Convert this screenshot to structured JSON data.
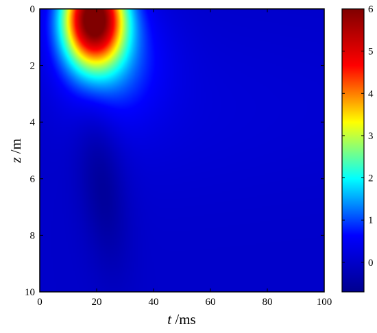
{
  "chart_data": {
    "type": "heatmap",
    "xlabel": {
      "var": "t",
      "unit": " /ms"
    },
    "ylabel": {
      "var": "z",
      "unit": " /m"
    },
    "xlim": [
      0,
      100
    ],
    "ylim": [
      0,
      10
    ],
    "y_axis_inverted": true,
    "x_ticks": [
      "0",
      "20",
      "40",
      "60",
      "80",
      "100"
    ],
    "y_ticks": [
      "0",
      "2",
      "4",
      "6",
      "8",
      "10"
    ],
    "colorbar": {
      "range": [
        -0.7,
        6
      ],
      "ticks": [
        "0",
        "1",
        "2",
        "3",
        "4",
        "5",
        "6"
      ],
      "colormap": "jet",
      "colors": [
        "#00008f",
        "#0000ff",
        "#00ffff",
        "#ffff00",
        "#ff0000",
        "#800000"
      ]
    },
    "features": [
      {
        "kind": "peak",
        "t": 19,
        "z": 0.3,
        "value": 6.0
      },
      {
        "kind": "trough",
        "t": 22,
        "z": 6.2,
        "value": -0.6
      },
      {
        "kind": "baseline",
        "value": 0.0
      }
    ],
    "grid": false
  }
}
